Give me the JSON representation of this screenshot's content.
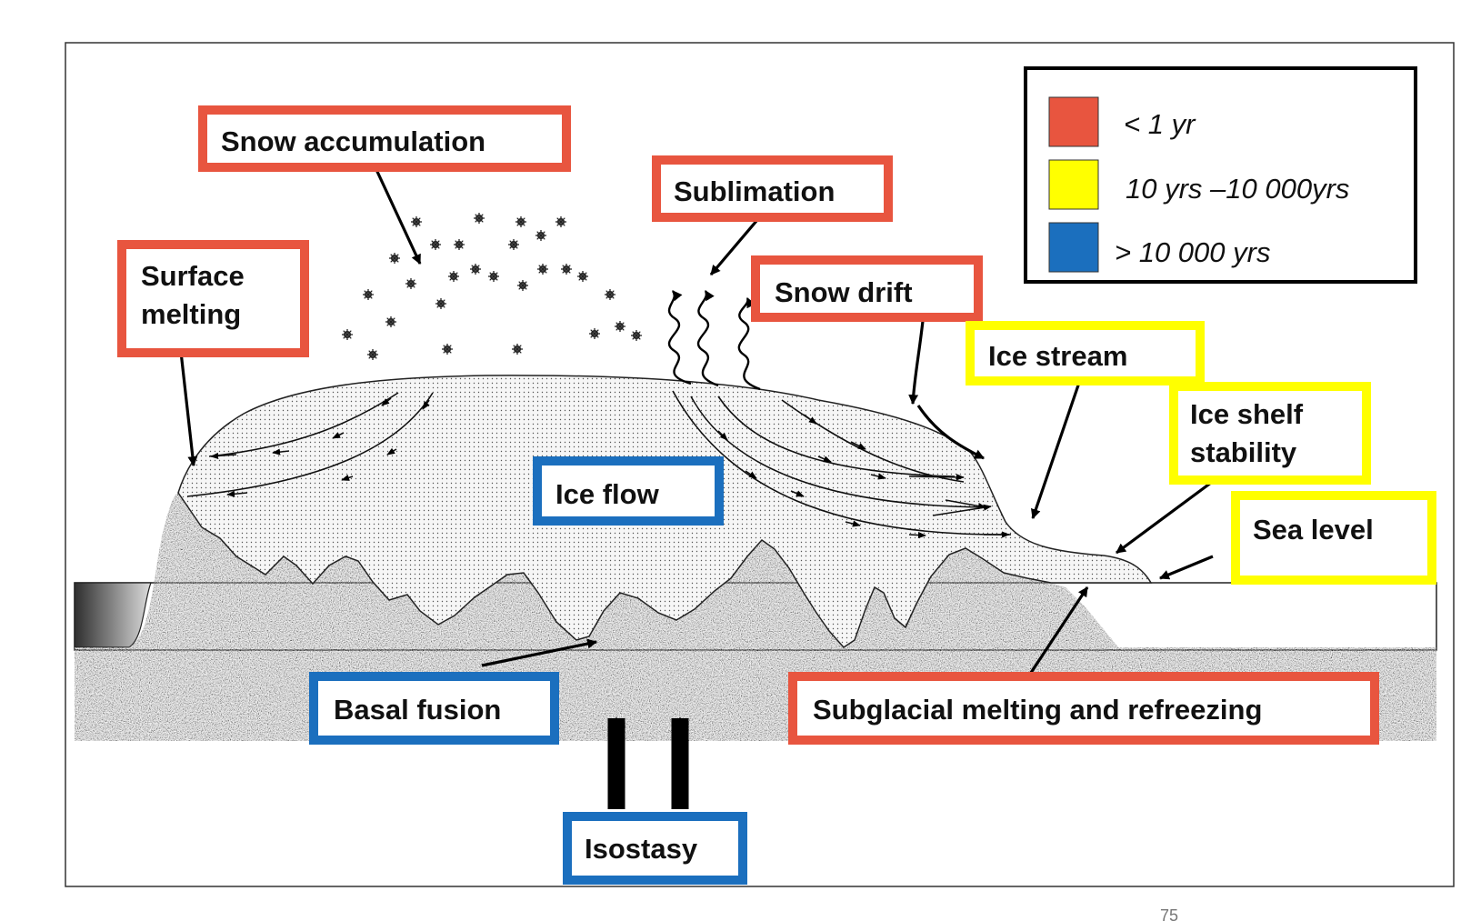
{
  "colors": {
    "short_timescale": "#e8553f",
    "medium_timescale": "#ffff00",
    "long_timescale": "#1b6fbe",
    "rock_fill": "#a2a2a2",
    "ice_fill": "#f4f4f4"
  },
  "legend": {
    "items": [
      {
        "label": "< 1 yr",
        "color": "#e8553f"
      },
      {
        "label": "10 yrs –10 000yrs",
        "color": "#ffff00"
      },
      {
        "label": "> 10 000 yrs",
        "color": "#1b6fbe"
      }
    ]
  },
  "labels": {
    "snow_accumulation": "Snow accumulation",
    "sublimation": "Sublimation",
    "surface_melting_line1": "Surface",
    "surface_melting_line2": "melting",
    "snow_drift": "Snow drift",
    "ice_stream": "Ice stream",
    "ice_shelf_line1": "Ice shelf",
    "ice_shelf_line2": "stability",
    "sea_level": "Sea level",
    "ice_flow": "Ice flow",
    "basal_fusion": "Basal fusion",
    "subglacial": "Subglacial melting and refreezing",
    "isostasy": "Isostasy"
  },
  "page_number": "75"
}
